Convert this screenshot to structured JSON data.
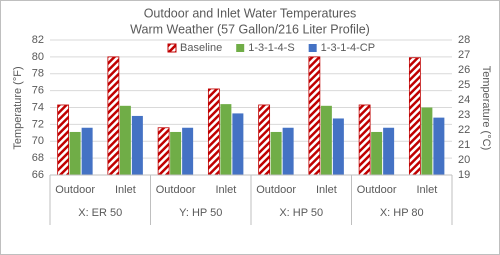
{
  "chart_data": {
    "type": "bar",
    "title": "Outdoor and Inlet Water Temperatures",
    "subtitle": "Warm Weather (57 Gallon/216 Liter Profile)",
    "y_label": "Temperature (°F)",
    "y2_label": "Temperature (°C)",
    "categories": [
      "Outdoor",
      "Inlet",
      "Outdoor",
      "Inlet",
      "Outdoor",
      "Inlet",
      "Outdoor",
      "Inlet"
    ],
    "groups": [
      "X: ER 50",
      "Y: HP 50",
      "X: HP 50",
      "X: HP 80"
    ],
    "series": [
      {
        "name": "Baseline",
        "color": "#c00000",
        "hatch": true,
        "values": [
          74.3,
          80.0,
          71.6,
          76.2,
          74.3,
          80.0,
          74.3,
          79.9
        ]
      },
      {
        "name": "1-3-1-4-S",
        "color": "#70ad47",
        "hatch": false,
        "values": [
          71.1,
          74.2,
          71.1,
          74.4,
          71.1,
          74.2,
          71.1,
          74.0
        ]
      },
      {
        "name": "1-3-1-4-CP",
        "color": "#4472c4",
        "hatch": false,
        "values": [
          71.6,
          73.0,
          71.6,
          73.3,
          71.6,
          72.7,
          71.6,
          72.8
        ]
      }
    ],
    "ylim": [
      66,
      82
    ],
    "yticks": [
      66,
      68,
      70,
      72,
      74,
      76,
      78,
      80,
      82
    ],
    "y2lim": [
      19,
      28
    ],
    "y2ticks": [
      19,
      20,
      21,
      22,
      23,
      24,
      25,
      26,
      27,
      28
    ],
    "grid": true,
    "legend": "top"
  }
}
